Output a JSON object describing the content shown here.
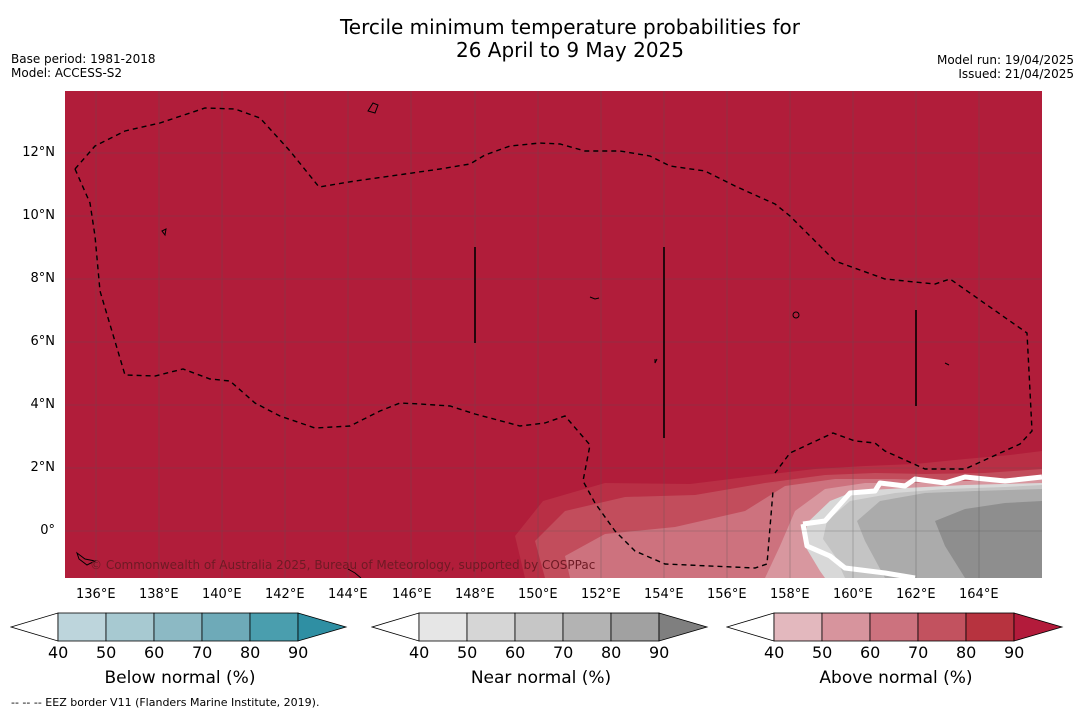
{
  "title_line1": "Tercile minimum temperature probabilities for",
  "title_line2": "26 April to 9 May 2025",
  "base_period": "Base period: 1981-2018",
  "model": "Model: ACCESS-S2",
  "model_run": "Model run: 19/04/2025",
  "issued": "Issued: 21/04/2025",
  "copyright": "© Commonwealth of Australia 2025, Bureau of Meteorology, supported by COSPPac",
  "footnote": "--  --  -- EEZ border V11 (Flanders Marine Institute, 2019).",
  "lat_ticks": [
    "12°N",
    "10°N",
    "8°N",
    "6°N",
    "4°N",
    "2°N",
    "0°"
  ],
  "lon_ticks": [
    "136°E",
    "138°E",
    "140°E",
    "142°E",
    "144°E",
    "146°E",
    "148°E",
    "150°E",
    "152°E",
    "154°E",
    "156°E",
    "158°E",
    "160°E",
    "162°E",
    "164°E"
  ],
  "colorbars": [
    {
      "title": "Below normal (%)",
      "labels": [
        "40",
        "50",
        "60",
        "70",
        "80",
        "90"
      ],
      "colors": [
        "#ffffff",
        "#bdd5dc",
        "#a7c9d1",
        "#8cb9c4",
        "#6eaab8",
        "#4a9eae",
        "#2f8fa3"
      ]
    },
    {
      "title": "Near normal (%)",
      "labels": [
        "40",
        "50",
        "60",
        "70",
        "80",
        "90"
      ],
      "colors": [
        "#ffffff",
        "#e6e6e6",
        "#d6d6d6",
        "#c6c6c6",
        "#b3b3b3",
        "#a1a1a1",
        "#7f7f7f"
      ]
    },
    {
      "title": "Above normal (%)",
      "labels": [
        "40",
        "50",
        "60",
        "70",
        "80",
        "90"
      ],
      "colors": [
        "#ffffff",
        "#e3b8be",
        "#d7949d",
        "#cc727e",
        "#c2525f",
        "#b7333f",
        "#b31b3b"
      ]
    }
  ],
  "map_colors": {
    "above_dominant": "#b11d3a",
    "above_80": "#b92f45",
    "above_70": "#c24d5c",
    "above_60": "#cd727e",
    "above_50": "#d8979f",
    "near_50": "#d8d8d8",
    "near_60": "#c4c4c4",
    "near_70": "#ababab",
    "near_80": "#8e8e8e"
  }
}
